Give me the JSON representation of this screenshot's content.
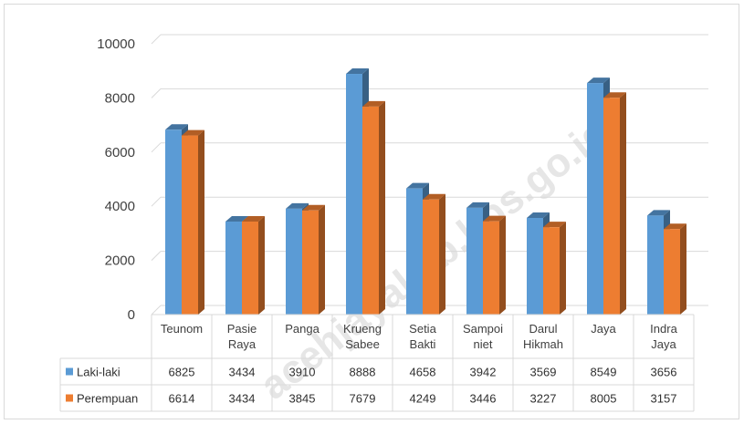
{
  "watermark": "acehjayakab.bps.go.id",
  "chart_data": {
    "type": "bar",
    "categories": [
      [
        "Teunom"
      ],
      [
        "Pasie",
        "Raya"
      ],
      [
        "Panga"
      ],
      [
        "Krueng",
        "Sabee"
      ],
      [
        "Setia",
        "Bakti"
      ],
      [
        "Sampoi",
        "niet"
      ],
      [
        "Darul",
        "Hikmah"
      ],
      [
        "Jaya"
      ],
      [
        "Indra",
        "Jaya"
      ]
    ],
    "series": [
      {
        "name": "Laki-laki",
        "color": "#5b9bd5",
        "values": [
          6825,
          3434,
          3910,
          8888,
          4658,
          3942,
          3569,
          8549,
          3656
        ]
      },
      {
        "name": "Perempuan",
        "color": "#ed7d31",
        "values": [
          6614,
          3434,
          3845,
          7679,
          4249,
          3446,
          3227,
          8005,
          3157
        ]
      }
    ],
    "ylim": [
      0,
      10000
    ],
    "yticks": [
      0,
      2000,
      4000,
      6000,
      8000,
      10000
    ],
    "grid": true,
    "legend": "data-table",
    "data_table": true
  }
}
